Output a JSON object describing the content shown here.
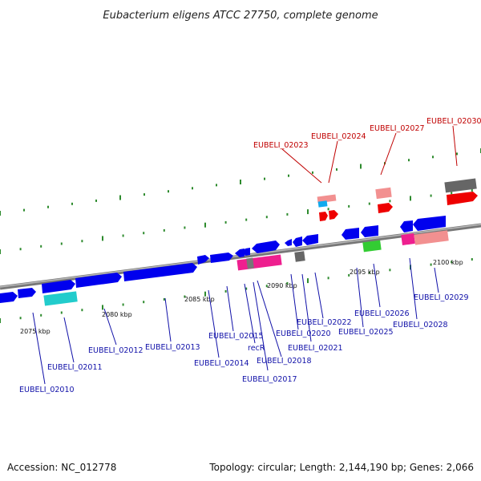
{
  "title": "Eubacterium eligens ATCC 27750, complete genome",
  "footer": {
    "accession": "Accession: NC_012778",
    "summary": "Topology: circular; Length: 2,144,190 bp; Genes: 2,066"
  },
  "colors": {
    "forward_gene": "#0000ee",
    "rrna": "#ee0000",
    "trna": "#f29090",
    "cds_pink": "#ee1f8f",
    "cds_gray": "#666666",
    "cds_cyan": "#22cccc",
    "cds_green": "#33cc33",
    "tick": "#2e8b2e",
    "backbone": "#888888",
    "label_blue": "#1010a8",
    "label_red": "#c00000"
  },
  "scale_labels": [
    "2075 kbp",
    "2080 kbp",
    "2085 kbp",
    "2090 kbp",
    "2095 kbp",
    "2100 kbp"
  ],
  "gene_labels_blue": [
    "EUBELI_02010",
    "EUBELI_02011",
    "EUBELI_02012",
    "EUBELI_02013",
    "EUBELI_02014",
    "EUBELI_02015",
    "recR",
    "EUBELI_02017",
    "EUBELI_02018",
    "EUBELI_02020",
    "EUBELI_02021",
    "EUBELI_02022",
    "EUBELI_02025",
    "EUBELI_02026",
    "EUBELI_02028",
    "EUBELI_02029"
  ],
  "gene_labels_red": [
    "EUBELI_02023",
    "EUBELI_02024",
    "EUBELI_02027",
    "EUBELI_02030"
  ]
}
